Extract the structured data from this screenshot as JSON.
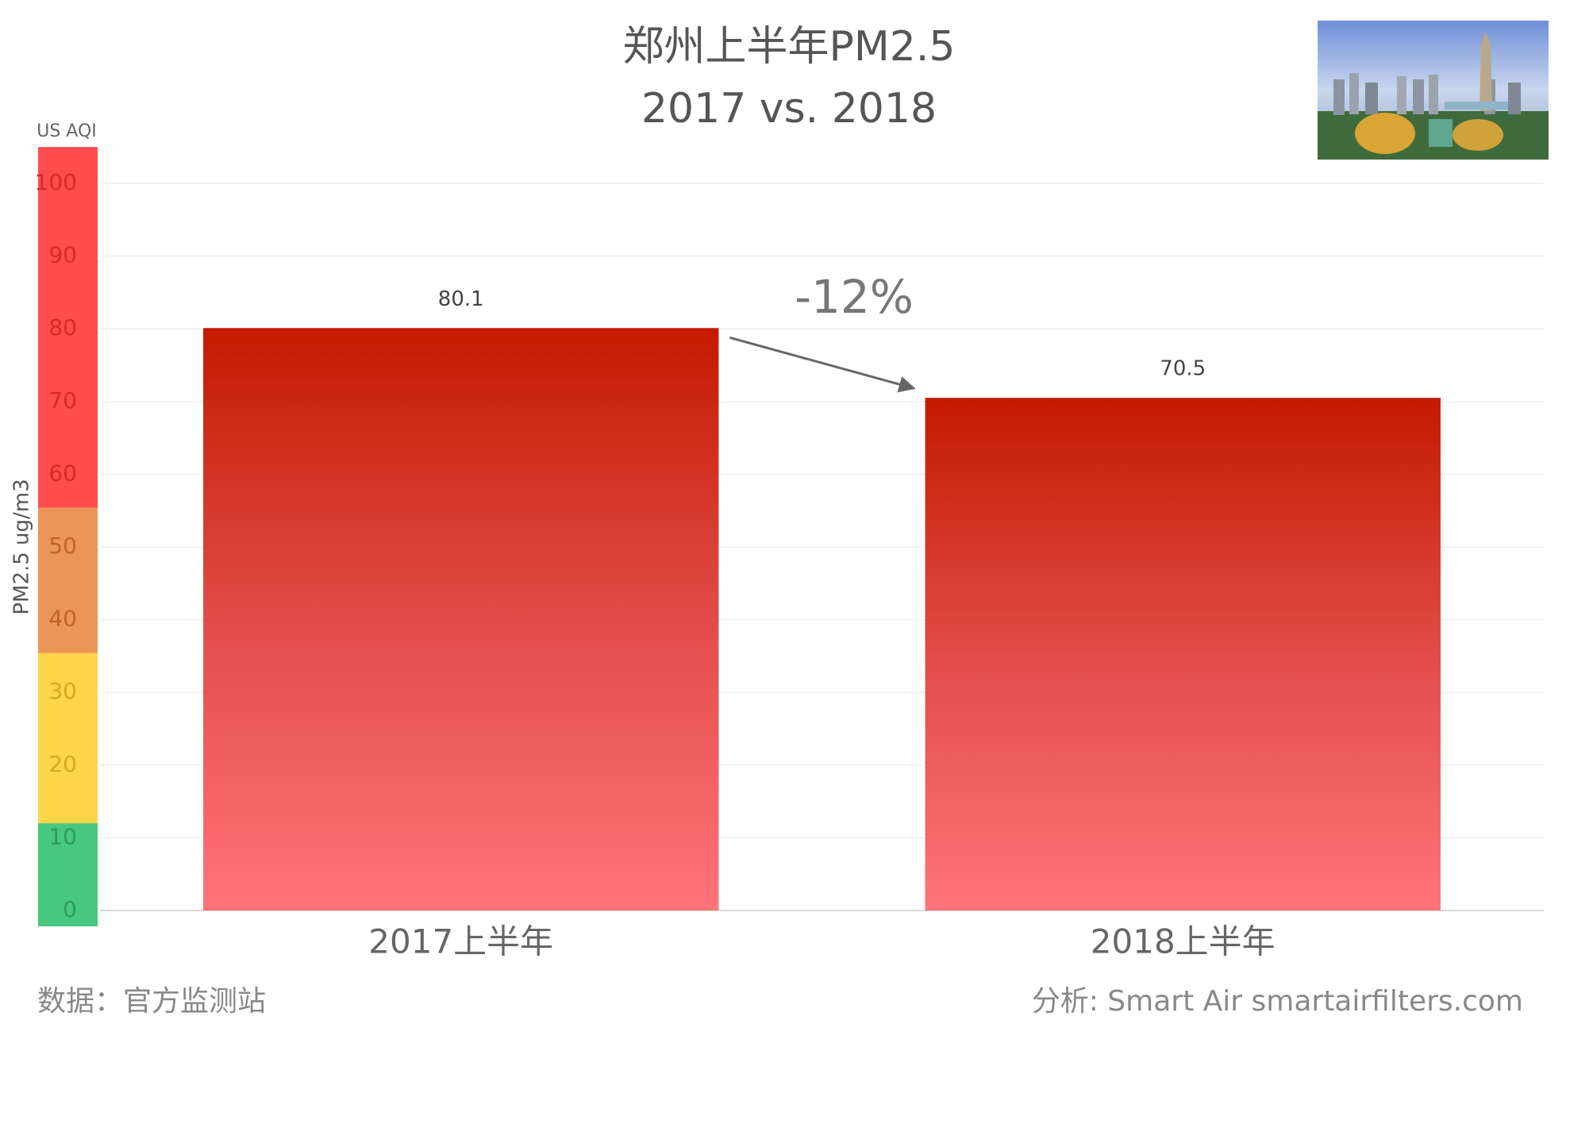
{
  "chart_data": {
    "type": "bar",
    "title": "郑州上半年PM2.5",
    "subtitle": "2017 vs. 2018",
    "y_axis_label": "PM2.5 ug/m3",
    "aqi_label": "US AQI",
    "categories": [
      "2017上半年",
      "2018上半年"
    ],
    "values": [
      80.1,
      70.5
    ],
    "color_top": "#c41a00",
    "color_bottom": "#ff737a",
    "ylim": [
      0,
      100
    ],
    "yticks": [
      0,
      10,
      20,
      30,
      40,
      50,
      60,
      70,
      80,
      90,
      100
    ],
    "grid": true,
    "aqi_bands": [
      {
        "from": 0,
        "to": 12,
        "color": "#47c77f",
        "text_color": "#2e9a5c"
      },
      {
        "from": 12,
        "to": 35.4,
        "color": "#ffd54a",
        "text_color": "#d9a520"
      },
      {
        "from": 35.4,
        "to": 55.4,
        "color": "#ea9656",
        "text_color": "#c0632a"
      },
      {
        "from": 55.4,
        "to": 105,
        "color": "#ff4d4f",
        "text_color": "#d42a2a"
      }
    ],
    "annotation": "-12%",
    "source": "数据：官方监测站",
    "credit": "分析: Smart Air smartairfilters.com"
  }
}
